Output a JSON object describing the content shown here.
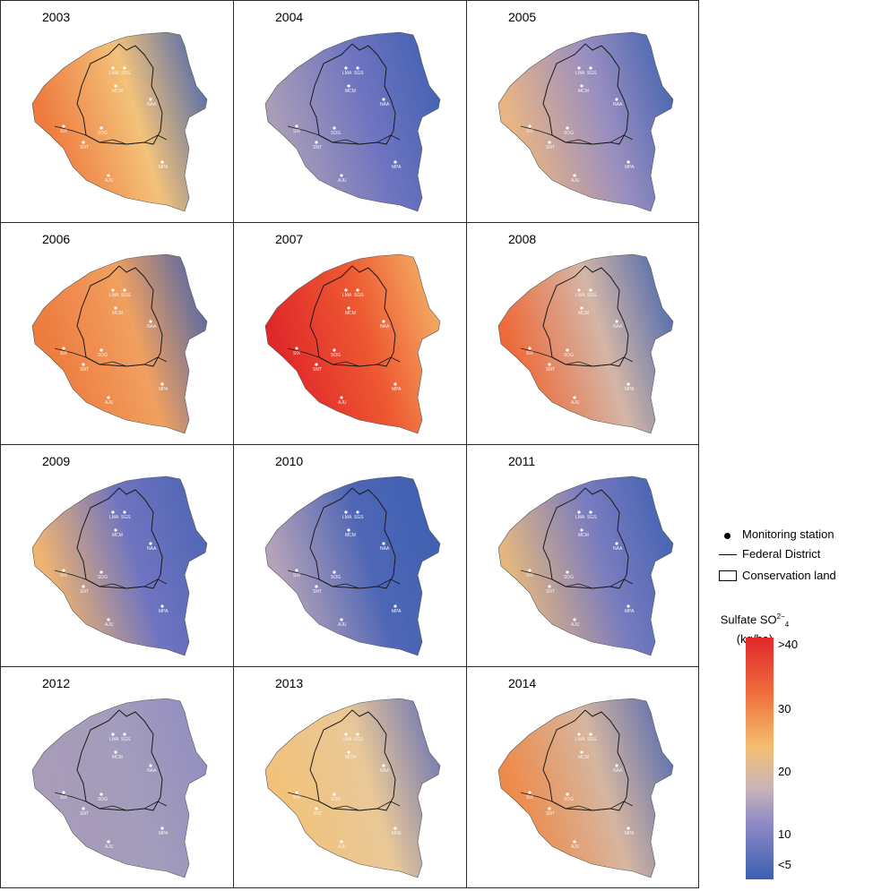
{
  "panels": [
    {
      "year": "2003"
    },
    {
      "year": "2004"
    },
    {
      "year": "2005"
    },
    {
      "year": "2006"
    },
    {
      "year": "2007"
    },
    {
      "year": "2008"
    },
    {
      "year": "2009"
    },
    {
      "year": "2010"
    },
    {
      "year": "2011"
    },
    {
      "year": "2012"
    },
    {
      "year": "2013"
    },
    {
      "year": "2014"
    }
  ],
  "stations": [
    "LMA",
    "SGS",
    "MCM",
    "NAA",
    "SIX",
    "SOG",
    "SNT",
    "MPA",
    "AJU"
  ],
  "legend": {
    "monitoring_station": "Monitoring station",
    "federal_district": "Federal District",
    "conservation_land": "Conservation land",
    "scale_title_main": "Sulfate SO",
    "scale_title_sup": "2−",
    "scale_title_sub": "4",
    "scale_unit": "(kg/ha)",
    "ticks": [
      ">40",
      "30",
      "20",
      "10",
      "<5"
    ]
  },
  "colors": {
    "high": "#e0282a",
    "mid_high": "#ee6a3a",
    "mid": "#f5be6e",
    "mid_low": "#c9b4b8",
    "low": "#8a88c4",
    "lowest": "#3b5fb0"
  }
}
